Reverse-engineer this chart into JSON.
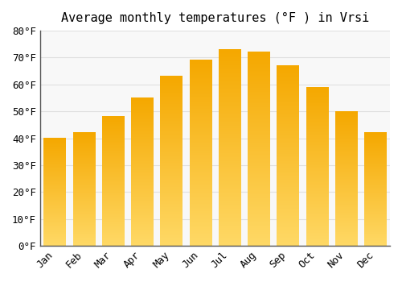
{
  "title": "Average monthly temperatures (°F ) in Vrsi",
  "months": [
    "Jan",
    "Feb",
    "Mar",
    "Apr",
    "May",
    "Jun",
    "Jul",
    "Aug",
    "Sep",
    "Oct",
    "Nov",
    "Dec"
  ],
  "values": [
    40,
    42,
    48,
    55,
    63,
    69,
    73,
    72,
    67,
    59,
    50,
    42
  ],
  "bar_color_bottom": "#F5A800",
  "bar_color_top": "#FFD966",
  "background_color": "#FFFFFF",
  "plot_bg_color": "#F8F8F8",
  "ylim": [
    0,
    80
  ],
  "yticks": [
    0,
    10,
    20,
    30,
    40,
    50,
    60,
    70,
    80
  ],
  "grid_color": "#E0E0E0",
  "title_fontsize": 11,
  "tick_fontsize": 9,
  "bar_width": 0.75,
  "spine_color": "#555555"
}
